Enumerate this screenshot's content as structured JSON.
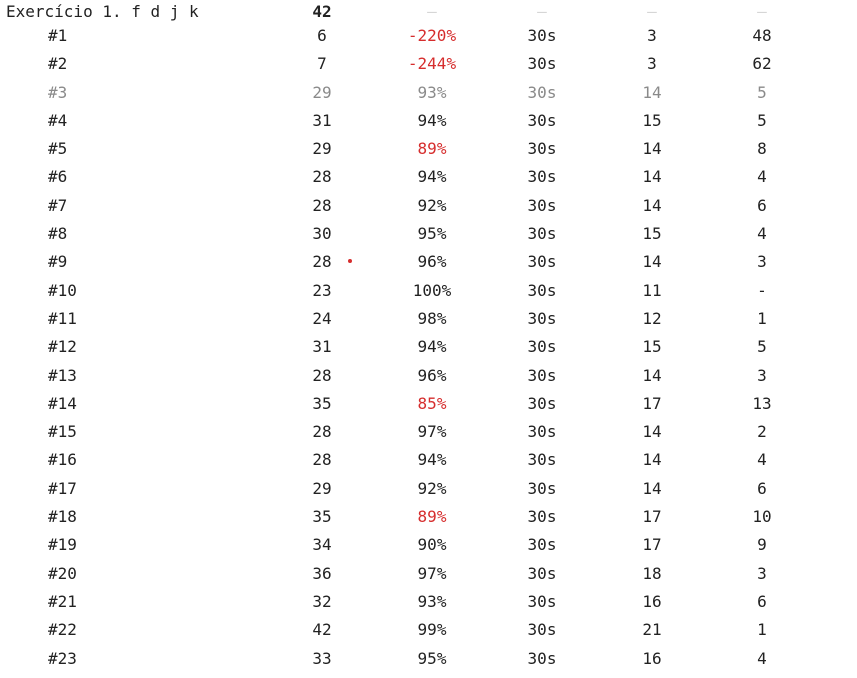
{
  "header": {
    "label": "Exercício 1. f d j k",
    "words": "42",
    "accuracy": "–",
    "time": "–",
    "wpm": "–",
    "errors": "–"
  },
  "colors": {
    "error_red": "#d62d2d",
    "muted_gray": "#8a8a8a",
    "text": "#222222"
  },
  "rows": [
    {
      "label": "#1",
      "words": "6",
      "accuracy": "-220%",
      "accuracy_low": true,
      "time": "30s",
      "wpm": "3",
      "errors": "48"
    },
    {
      "label": "#2",
      "words": "7",
      "accuracy": "-244%",
      "accuracy_low": true,
      "time": "30s",
      "wpm": "3",
      "errors": "62"
    },
    {
      "label": "#3",
      "words": "29",
      "accuracy": "93%",
      "accuracy_low": false,
      "time": "30s",
      "wpm": "14",
      "errors": "5",
      "muted": true
    },
    {
      "label": "#4",
      "words": "31",
      "accuracy": "94%",
      "accuracy_low": false,
      "time": "30s",
      "wpm": "15",
      "errors": "5"
    },
    {
      "label": "#5",
      "words": "29",
      "accuracy": "89%",
      "accuracy_low": true,
      "time": "30s",
      "wpm": "14",
      "errors": "8"
    },
    {
      "label": "#6",
      "words": "28",
      "accuracy": "94%",
      "accuracy_low": false,
      "time": "30s",
      "wpm": "14",
      "errors": "4"
    },
    {
      "label": "#7",
      "words": "28",
      "accuracy": "92%",
      "accuracy_low": false,
      "time": "30s",
      "wpm": "14",
      "errors": "6"
    },
    {
      "label": "#8",
      "words": "30",
      "accuracy": "95%",
      "accuracy_low": false,
      "time": "30s",
      "wpm": "15",
      "errors": "4"
    },
    {
      "label": "#9",
      "words": "28",
      "accuracy": "96%",
      "accuracy_low": false,
      "time": "30s",
      "wpm": "14",
      "errors": "3",
      "marker": true
    },
    {
      "label": "#10",
      "words": "23",
      "accuracy": "100%",
      "accuracy_low": false,
      "time": "30s",
      "wpm": "11",
      "errors": "-"
    },
    {
      "label": "#11",
      "words": "24",
      "accuracy": "98%",
      "accuracy_low": false,
      "time": "30s",
      "wpm": "12",
      "errors": "1"
    },
    {
      "label": "#12",
      "words": "31",
      "accuracy": "94%",
      "accuracy_low": false,
      "time": "30s",
      "wpm": "15",
      "errors": "5"
    },
    {
      "label": "#13",
      "words": "28",
      "accuracy": "96%",
      "accuracy_low": false,
      "time": "30s",
      "wpm": "14",
      "errors": "3"
    },
    {
      "label": "#14",
      "words": "35",
      "accuracy": "85%",
      "accuracy_low": true,
      "time": "30s",
      "wpm": "17",
      "errors": "13"
    },
    {
      "label": "#15",
      "words": "28",
      "accuracy": "97%",
      "accuracy_low": false,
      "time": "30s",
      "wpm": "14",
      "errors": "2"
    },
    {
      "label": "#16",
      "words": "28",
      "accuracy": "94%",
      "accuracy_low": false,
      "time": "30s",
      "wpm": "14",
      "errors": "4"
    },
    {
      "label": "#17",
      "words": "29",
      "accuracy": "92%",
      "accuracy_low": false,
      "time": "30s",
      "wpm": "14",
      "errors": "6"
    },
    {
      "label": "#18",
      "words": "35",
      "accuracy": "89%",
      "accuracy_low": true,
      "time": "30s",
      "wpm": "17",
      "errors": "10"
    },
    {
      "label": "#19",
      "words": "34",
      "accuracy": "90%",
      "accuracy_low": false,
      "time": "30s",
      "wpm": "17",
      "errors": "9"
    },
    {
      "label": "#20",
      "words": "36",
      "accuracy": "97%",
      "accuracy_low": false,
      "time": "30s",
      "wpm": "18",
      "errors": "3"
    },
    {
      "label": "#21",
      "words": "32",
      "accuracy": "93%",
      "accuracy_low": false,
      "time": "30s",
      "wpm": "16",
      "errors": "6"
    },
    {
      "label": "#22",
      "words": "42",
      "accuracy": "99%",
      "accuracy_low": false,
      "time": "30s",
      "wpm": "21",
      "errors": "1"
    },
    {
      "label": "#23",
      "words": "33",
      "accuracy": "95%",
      "accuracy_low": false,
      "time": "30s",
      "wpm": "16",
      "errors": "4"
    }
  ]
}
